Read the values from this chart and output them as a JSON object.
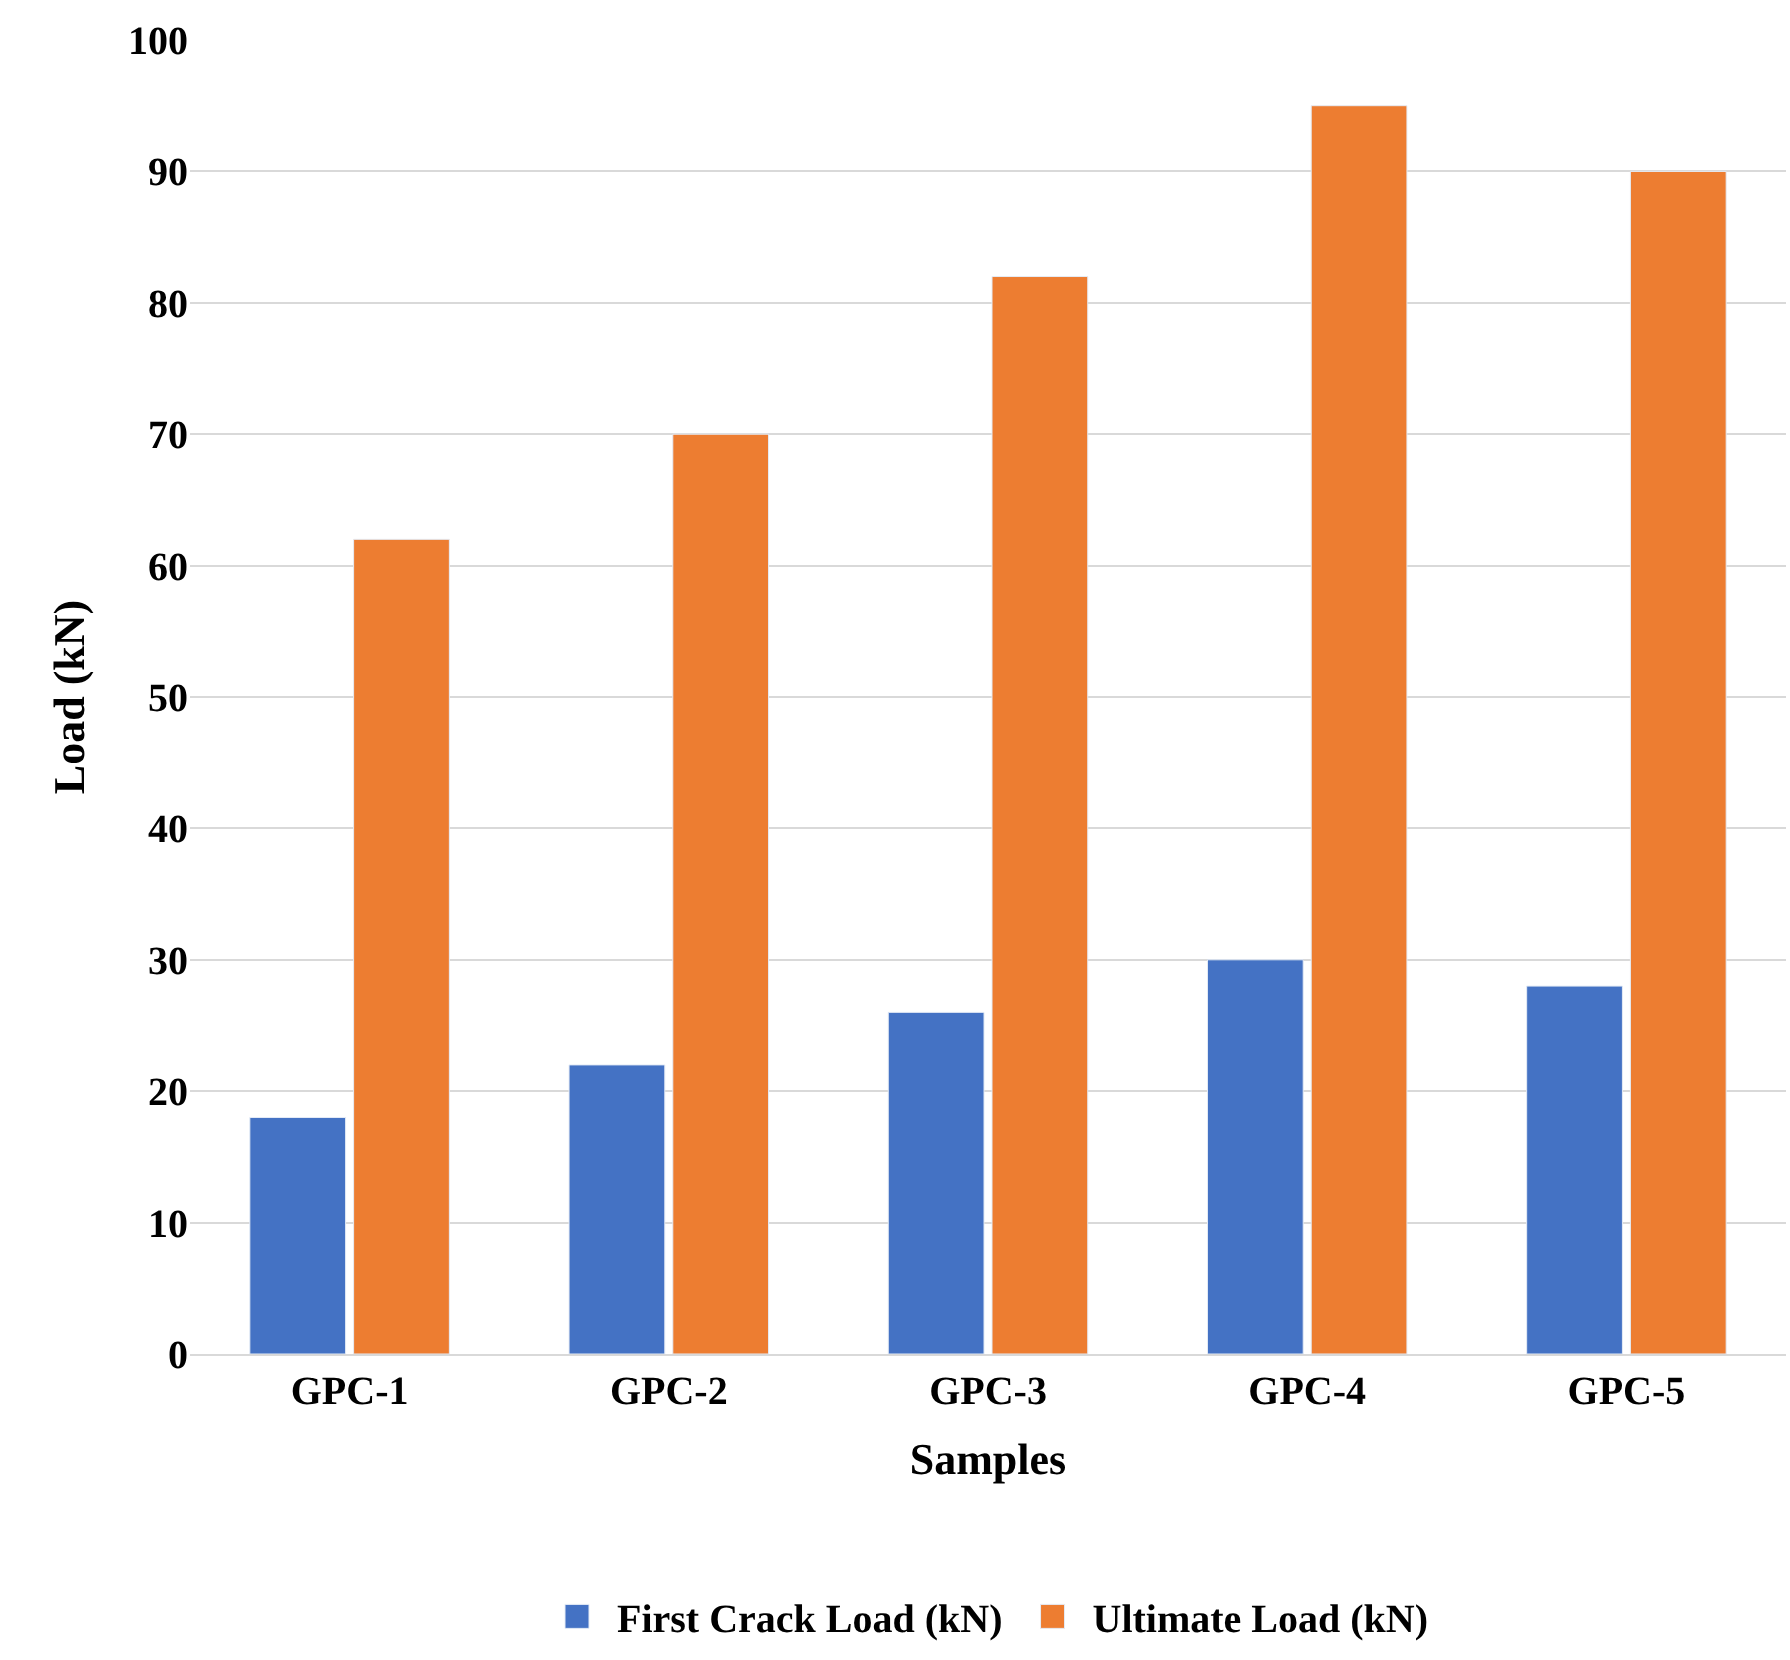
{
  "chart_data": {
    "type": "bar",
    "xlabel": "Samples",
    "ylabel": "Load (kN)",
    "categories": [
      "GPC-1",
      "GPC-2",
      "GPC-3",
      "GPC-4",
      "GPC-5"
    ],
    "series": [
      {
        "name": "First Crack Load (kN)",
        "color": "#4472c4",
        "values": [
          18,
          22,
          26,
          30,
          28
        ]
      },
      {
        "name": "Ultimate Load (kN)",
        "color": "#ed7d31",
        "values": [
          62,
          70,
          82,
          95,
          90
        ]
      }
    ],
    "ylim": [
      0,
      100
    ],
    "yticks": [
      0,
      10,
      20,
      30,
      40,
      50,
      60,
      70,
      80,
      90,
      100
    ],
    "grid": "y",
    "legend": "bottom"
  }
}
